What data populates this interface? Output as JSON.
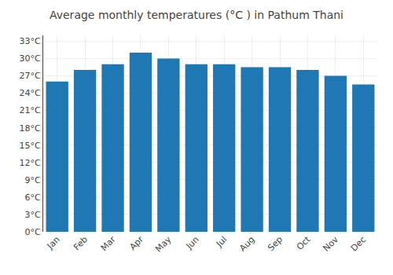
{
  "chart_data": {
    "type": "bar",
    "title": "Average monthly temperatures (°C ) in Pathum Thani",
    "categories": [
      "Jan",
      "Feb",
      "Mar",
      "Apr",
      "May",
      "Jun",
      "Jul",
      "Aug",
      "Sep",
      "Oct",
      "Nov",
      "Dec"
    ],
    "values": [
      26.0,
      28.0,
      29.0,
      31.0,
      30.0,
      29.0,
      29.0,
      28.5,
      28.5,
      28.0,
      27.0,
      25.5
    ],
    "ylim": [
      0,
      34
    ],
    "yticks": [
      {
        "value": 0,
        "label": "0°C"
      },
      {
        "value": 3,
        "label": "3°C"
      },
      {
        "value": 6,
        "label": "6°C"
      },
      {
        "value": 9,
        "label": "9°C"
      },
      {
        "value": 12,
        "label": "12°C"
      },
      {
        "value": 15,
        "label": "15°C"
      },
      {
        "value": 18,
        "label": "18°C"
      },
      {
        "value": 21,
        "label": "21°C"
      },
      {
        "value": 24,
        "label": "24°C"
      },
      {
        "value": 27,
        "label": "27°C"
      },
      {
        "value": 30,
        "label": "30°C"
      },
      {
        "value": 33,
        "label": "33°C"
      }
    ],
    "grid": true
  }
}
